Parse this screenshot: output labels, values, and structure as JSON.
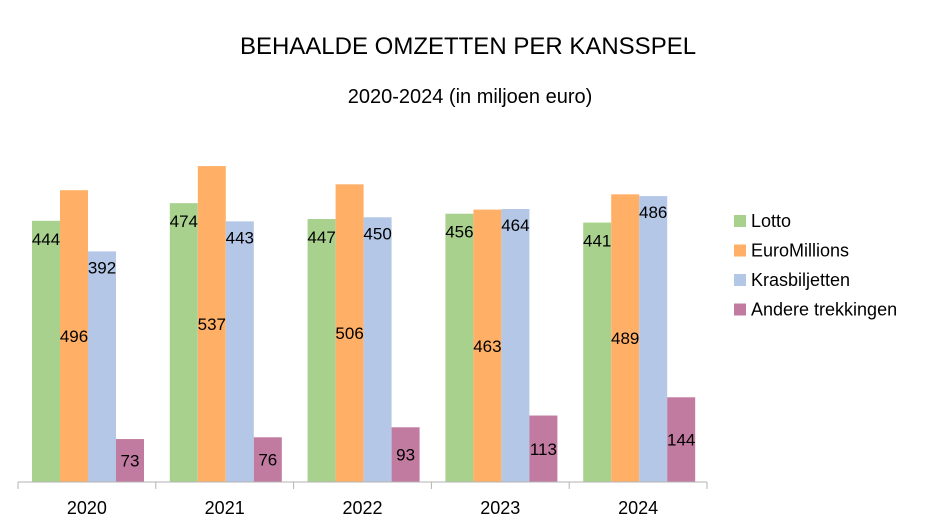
{
  "chart_data": {
    "type": "bar",
    "title": "BEHAALDE OMZETTEN PER KANSSPEL",
    "subtitle": "2020-2024 (in miljoen euro)",
    "xlabel": "",
    "ylabel": "",
    "ylim": [
      0,
      600
    ],
    "grid": false,
    "legend_position": "right",
    "categories": [
      "2020",
      "2021",
      "2022",
      "2023",
      "2024"
    ],
    "series": [
      {
        "name": "Lotto",
        "color": "#a9d18e",
        "values": [
          444,
          474,
          447,
          456,
          441
        ],
        "labels": [
          "444",
          "474",
          "447",
          "456",
          "441"
        ]
      },
      {
        "name": "EuroMillions",
        "color": "#ffb066",
        "values": [
          496,
          537,
          506,
          463,
          489
        ],
        "labels": [
          "496",
          "537",
          "506",
          "463",
          "489"
        ]
      },
      {
        "name": "Krasbiljetten",
        "color": "#b4c7e7",
        "values": [
          392,
          443,
          450,
          464,
          486
        ],
        "labels": [
          "392",
          "443",
          "450",
          "464",
          "486"
        ]
      },
      {
        "name": "Andere trekkingen",
        "color": "#c27ba0",
        "values": [
          73,
          76,
          93,
          113,
          144
        ],
        "labels": [
          "73",
          "76",
          "93",
          "113",
          "144"
        ]
      }
    ]
  }
}
